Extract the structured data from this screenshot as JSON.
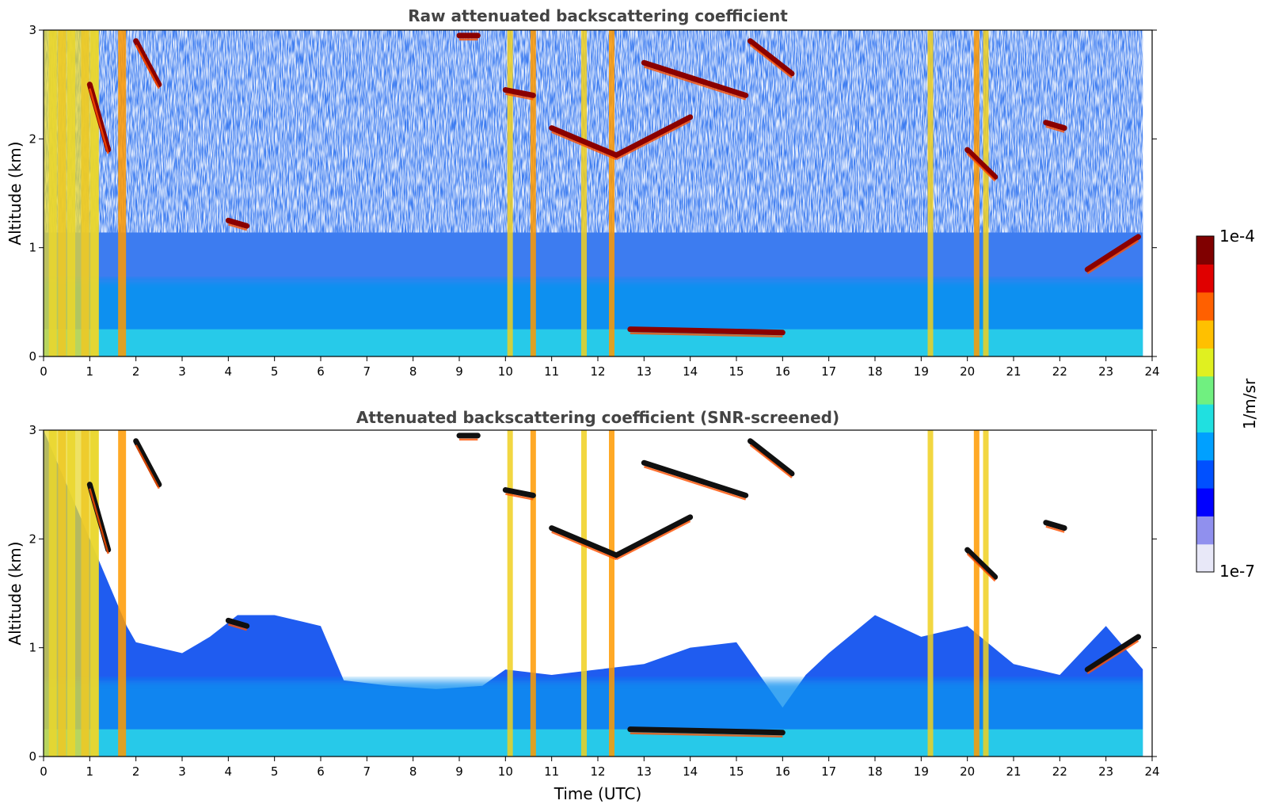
{
  "chart_data": [
    {
      "type": "heatmap",
      "title": "Raw attenuated backscattering coefficient",
      "xlabel": "",
      "ylabel": "Altitude (km)",
      "xlim": [
        0,
        24
      ],
      "ylim": [
        0,
        3
      ],
      "x_ticks": [
        "0",
        "1",
        "2",
        "3",
        "4",
        "5",
        "6",
        "7",
        "8",
        "9",
        "10",
        "11",
        "12",
        "13",
        "14",
        "15",
        "16",
        "17",
        "18",
        "19",
        "20",
        "21",
        "22",
        "23",
        "24"
      ],
      "y_ticks": [
        "0",
        "1",
        "2",
        "3"
      ],
      "screened": false,
      "features": {
        "surface_layer_km": [
          0,
          0.25
        ],
        "boundary_layer_top_km": 0.7,
        "strong_returns_utc": [
          0.2,
          0.4,
          0.6,
          0.9,
          1.1,
          1.7,
          10.1,
          10.6,
          11.7,
          12.3,
          19.2,
          20.2,
          20.4
        ],
        "cloud_segments": [
          {
            "t0": 1.0,
            "t1": 1.4,
            "z0": 2.5,
            "z1": 1.9
          },
          {
            "t0": 2.0,
            "t1": 2.5,
            "z0": 2.9,
            "z1": 2.5
          },
          {
            "t0": 4.0,
            "t1": 4.4,
            "z0": 1.25,
            "z1": 1.2
          },
          {
            "t0": 9.0,
            "t1": 9.4,
            "z0": 2.95,
            "z1": 2.95
          },
          {
            "t0": 10.0,
            "t1": 10.6,
            "z0": 2.45,
            "z1": 2.4
          },
          {
            "t0": 11.0,
            "t1": 12.4,
            "z0": 2.1,
            "z1": 1.85
          },
          {
            "t0": 12.4,
            "t1": 14.0,
            "z0": 1.85,
            "z1": 2.2
          },
          {
            "t0": 13.0,
            "t1": 15.2,
            "z0": 2.7,
            "z1": 2.4
          },
          {
            "t0": 15.3,
            "t1": 16.2,
            "z0": 2.9,
            "z1": 2.6
          },
          {
            "t0": 12.7,
            "t1": 16.0,
            "z0": 0.25,
            "z1": 0.22
          },
          {
            "t0": 20.0,
            "t1": 20.6,
            "z0": 1.9,
            "z1": 1.65
          },
          {
            "t0": 21.7,
            "t1": 22.1,
            "z0": 2.15,
            "z1": 2.1
          },
          {
            "t0": 22.6,
            "t1": 23.7,
            "z0": 0.8,
            "z1": 1.1
          }
        ]
      }
    },
    {
      "type": "heatmap",
      "title": "Attenuated backscattering coefficient (SNR-screened)",
      "xlabel": "Time (UTC)",
      "ylabel": "Altitude (km)",
      "xlim": [
        0,
        24
      ],
      "ylim": [
        0,
        3
      ],
      "x_ticks": [
        "0",
        "1",
        "2",
        "3",
        "4",
        "5",
        "6",
        "7",
        "8",
        "9",
        "10",
        "11",
        "12",
        "13",
        "14",
        "15",
        "16",
        "17",
        "18",
        "19",
        "20",
        "21",
        "22",
        "23",
        "24"
      ],
      "y_ticks": [
        "0",
        "1",
        "2",
        "3"
      ],
      "screened": true,
      "features": {
        "valid_signal_top_profile": [
          [
            0,
            3.0
          ],
          [
            1.8,
            1.2
          ],
          [
            2.0,
            1.05
          ],
          [
            3.0,
            0.95
          ],
          [
            3.6,
            1.1
          ],
          [
            4.2,
            1.3
          ],
          [
            5.0,
            1.3
          ],
          [
            6.0,
            1.2
          ],
          [
            6.5,
            0.7
          ],
          [
            7.5,
            0.65
          ],
          [
            8.5,
            0.62
          ],
          [
            9.5,
            0.65
          ],
          [
            10.0,
            0.8
          ],
          [
            11.0,
            0.75
          ],
          [
            12.0,
            0.8
          ],
          [
            13.0,
            0.85
          ],
          [
            14.0,
            1.0
          ],
          [
            15.0,
            1.05
          ],
          [
            16.0,
            0.45
          ],
          [
            16.5,
            0.75
          ],
          [
            17.0,
            0.95
          ],
          [
            18.0,
            1.3
          ],
          [
            19.0,
            1.1
          ],
          [
            20.0,
            1.2
          ],
          [
            21.0,
            0.85
          ],
          [
            22.0,
            0.75
          ],
          [
            23.0,
            1.2
          ],
          [
            23.8,
            0.8
          ]
        ]
      }
    }
  ],
  "colorbar": {
    "label": "1/m/sr",
    "max_label": "1e-4",
    "min_label": "1e-7",
    "colors": [
      "#e8e8f8",
      "#9090ee",
      "#0000ff",
      "#0050ff",
      "#00a0ff",
      "#20e0e0",
      "#70f080",
      "#e0f020",
      "#ffc000",
      "#ff6000",
      "#e00000",
      "#800000"
    ]
  }
}
